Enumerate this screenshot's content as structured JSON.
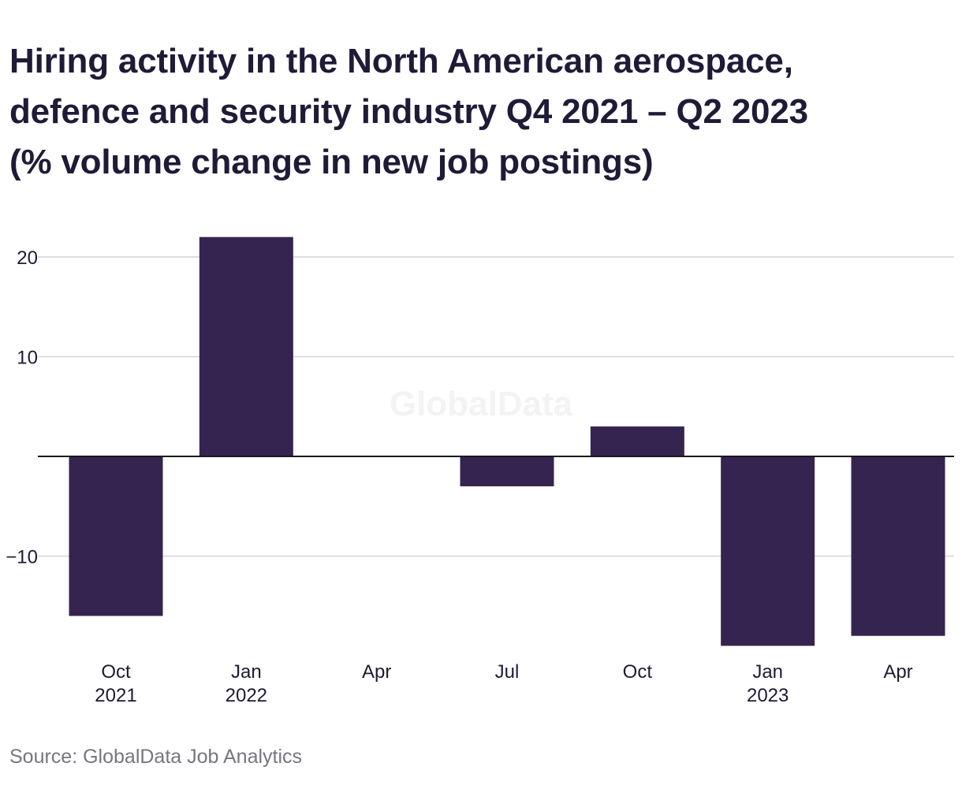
{
  "chart_data": {
    "type": "bar",
    "title_lines": [
      "Hiring activity in the North American aerospace,",
      "defence and security industry Q4 2021 – Q2 2023",
      "(% volume change in new job postings)"
    ],
    "categories": [
      "Oct 2021",
      "Jan 2022",
      "Apr 2022",
      "Jul 2022",
      "Oct 2022",
      "Jan 2023",
      "Apr 2023"
    ],
    "tick_labels": [
      [
        "Oct",
        "2021"
      ],
      [
        "Jan",
        "2022"
      ],
      [
        "Apr",
        ""
      ],
      [
        "Jul",
        ""
      ],
      [
        "Oct",
        ""
      ],
      [
        "Jan",
        "2023"
      ],
      [
        "Apr",
        ""
      ]
    ],
    "values": [
      -16,
      22,
      0,
      -3,
      3,
      -19,
      -18
    ],
    "y_ticks": [
      20,
      10,
      -10
    ],
    "y_tick_labels": [
      "20",
      "10",
      "−10"
    ],
    "ylim": [
      -20.5,
      24
    ],
    "grid": true,
    "bar_color": "#35244f",
    "gridline_color": "#d4d4d4",
    "zero_line_color": "#1a1a1a",
    "watermark": "GlobalData",
    "source": "Source: GlobalData Job Analytics"
  }
}
